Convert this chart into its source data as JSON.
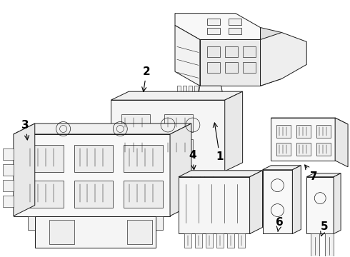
{
  "background_color": "#ffffff",
  "line_color": "#1a1a1a",
  "label_color": "#000000",
  "label_fontsize": 11,
  "figsize": [
    4.9,
    3.6
  ],
  "dpi": 100,
  "components": {
    "comp1_label": "1",
    "comp2_label": "2",
    "comp3_label": "3",
    "comp4_label": "4",
    "comp5_label": "5",
    "comp6_label": "6",
    "comp7_label": "7"
  }
}
